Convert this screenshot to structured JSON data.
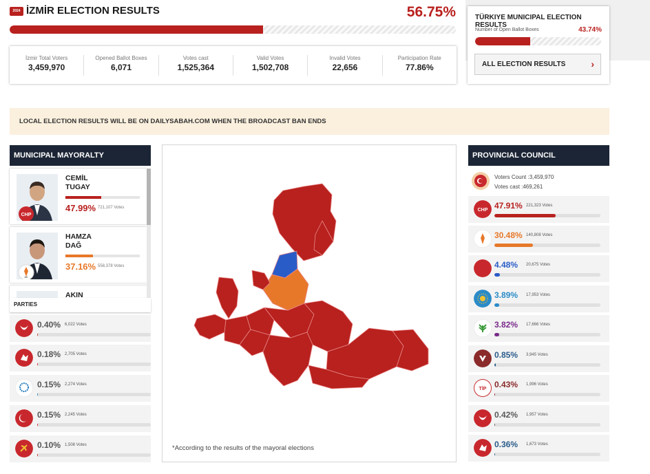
{
  "header": {
    "badge": "2024",
    "title": "İZMİR ELECTION RESULTS",
    "percent": "56.75%",
    "progress": 0.5675
  },
  "stats": [
    {
      "label": "İzmir Total Voters",
      "value": "3,459,970"
    },
    {
      "label": "Opened Ballot Boxes",
      "value": "6,071"
    },
    {
      "label": "Votes cast",
      "value": "1,525,364"
    },
    {
      "label": "Valid Votes",
      "value": "1,502,708"
    },
    {
      "label": "Invalid Votes",
      "value": "22,656"
    },
    {
      "label": "Participation Rate",
      "value": "77.86%"
    }
  ],
  "turkiye": {
    "title": "TÜRKIYE MUNICIPAL ELECTION RESULTS",
    "subtitle": "Number of Open Ballot Boxes",
    "percent": "43.74%",
    "progress": 0.4374,
    "button": "ALL ELECTION RESULTS"
  },
  "notice": "LOCAL ELECTION RESULTS WILL BE ON DAILYSABAH.COM WHEN THE BROADCAST BAN ENDS",
  "mayoralty": {
    "heading": "MUNICIPAL MAYORALTY",
    "candidates": [
      {
        "first": "CEMİL",
        "last": "TUGAY",
        "percent": "47.99%",
        "votes": "721,107 Votes",
        "party": "CHP",
        "color": "#b8211e",
        "share": 0.4799
      },
      {
        "first": "HAMZA",
        "last": "DAĞ",
        "percent": "37.16%",
        "votes": "558,378 Votes",
        "party": "AK PARTİ",
        "color": "#e7782a",
        "share": 0.3716
      },
      {
        "first": "AKIN",
        "last": "",
        "percent": "",
        "votes": "",
        "party": "",
        "color": "#888888",
        "share": 0
      }
    ]
  },
  "parties": {
    "heading": "PARTIES",
    "items": [
      {
        "percent": "0.40%",
        "votes": "6,022 Votes",
        "color": "#c8282d",
        "share": 0.004
      },
      {
        "percent": "0.18%",
        "votes": "2,705 Votes",
        "color": "#c8282d",
        "share": 0.0018
      },
      {
        "percent": "0.15%",
        "votes": "2,274 Votes",
        "color": "#2a7fc0",
        "share": 0.0015
      },
      {
        "percent": "0.15%",
        "votes": "2,245 Votes",
        "color": "#c8282d",
        "share": 0.0015
      },
      {
        "percent": "0.10%",
        "votes": "1,508 Votes",
        "color": "#c8282d",
        "share": 0.001
      }
    ]
  },
  "map": {
    "note": "*According to the results of the mayoral elections",
    "colors": {
      "chp": "#b8211e",
      "ak": "#e7782a",
      "mhp": "#2a5cc8"
    }
  },
  "council": {
    "heading": "PROVINCIAL COUNCIL",
    "voters_count": "Voters Count :3,459,970",
    "votes_cast": "Votes cast :469,261",
    "items": [
      {
        "percent": "47.91%",
        "votes": "221,323 Votes",
        "color": "#b8211e",
        "bar": "#b8211e",
        "share": 0.4791
      },
      {
        "percent": "30.48%",
        "votes": "140,808 Votes",
        "color": "#e7782a",
        "bar": "#e7782a",
        "share": 0.3048
      },
      {
        "percent": "4.48%",
        "votes": "20,675 Votes",
        "color": "#2a5cc8",
        "bar": "#2a5cc8",
        "share": 0.0448
      },
      {
        "percent": "3.89%",
        "votes": "17,953 Votes",
        "color": "#2a8bc8",
        "bar": "#2a8bc8",
        "share": 0.0389
      },
      {
        "percent": "3.82%",
        "votes": "17,666 Votes",
        "color": "#7a2a8a",
        "bar": "#7a2a8a",
        "share": 0.0382
      },
      {
        "percent": "0.85%",
        "votes": "3,945 Votes",
        "color": "#2a5c8a",
        "bar": "#2a5c8a",
        "share": 0.0085
      },
      {
        "percent": "0.43%",
        "votes": "1,996 Votes",
        "color": "#8a2a2a",
        "bar": "#8a2a2a",
        "share": 0.0043
      },
      {
        "percent": "0.42%",
        "votes": "1,957 Votes",
        "color": "#5a5a5a",
        "bar": "#5a5a5a",
        "share": 0.0042
      },
      {
        "percent": "0.36%",
        "votes": "1,673 Votes",
        "color": "#2a5c8a",
        "bar": "#2a5c8a",
        "share": 0.0036
      }
    ]
  }
}
